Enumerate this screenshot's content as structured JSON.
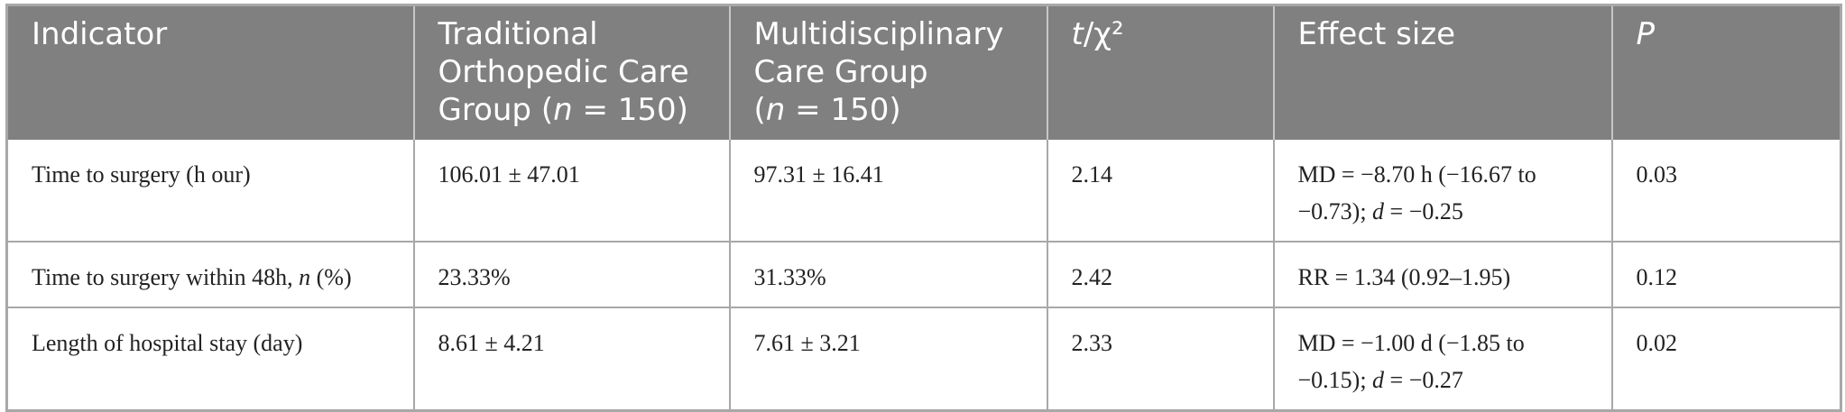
{
  "table": {
    "headers": {
      "indicator": "Indicator",
      "traditional_line1": "Traditional",
      "traditional_line2": "Orthopedic Care",
      "traditional_line3_pre": "Group (",
      "traditional_n": "n",
      "traditional_line3_post": " = 150)",
      "multi_line1": "Multidisciplinary",
      "multi_line2": "Care Group",
      "multi_line3_pre": "(",
      "multi_n": "n",
      "multi_line3_post": " = 150)",
      "stat_t": "t",
      "stat_rest": "/χ²",
      "effect": "Effect size",
      "p": "P"
    },
    "rows": [
      {
        "indicator": "Time to surgery (h our)",
        "traditional": "106.01 ± 47.01",
        "multidisciplinary": "97.31 ± 16.41",
        "stat": "2.14",
        "effect_pre": "MD = −8.70 h (−16.67 to −0.73); ",
        "effect_d": "d",
        "effect_post": " = −0.25",
        "p": "0.03"
      },
      {
        "indicator_pre": "Time to surgery within 48h, ",
        "indicator_n": "n",
        "indicator_post": " (%)",
        "traditional": "23.33%",
        "multidisciplinary": "31.33%",
        "stat": "2.42",
        "effect": "RR = 1.34 (0.92–1.95)",
        "p": "0.12"
      },
      {
        "indicator": "Length of hospital stay (day)",
        "traditional": "8.61 ± 4.21",
        "multidisciplinary": "7.61 ± 3.21",
        "stat": "2.33",
        "effect_pre": "MD = −1.00 d (−1.85 to −0.15); ",
        "effect_d": "d",
        "effect_post": " = −0.27",
        "p": "0.02"
      }
    ]
  }
}
